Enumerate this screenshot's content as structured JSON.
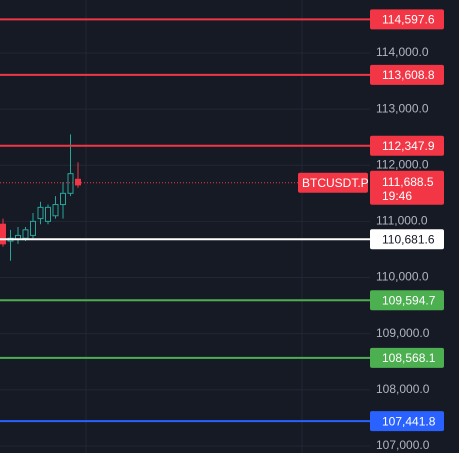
{
  "chart_data": {
    "type": "candlestick",
    "categories": [
      null,
      null,
      null,
      null,
      null,
      null,
      null,
      null,
      null,
      null,
      null
    ],
    "open": [
      110950,
      110650,
      110680,
      110700,
      110750,
      111050,
      111000,
      111100,
      111300,
      111500,
      111750
    ],
    "high": [
      111050,
      110850,
      110900,
      110900,
      111150,
      111350,
      111300,
      111450,
      111700,
      112550,
      112050
    ],
    "low": [
      110550,
      110300,
      110600,
      110650,
      110700,
      110950,
      110950,
      111050,
      111050,
      111450,
      111600
    ],
    "close": [
      110600,
      110700,
      110750,
      110850,
      111000,
      111250,
      111250,
      111300,
      111500,
      111850,
      111650
    ],
    "up_color": "#26a69a",
    "down_color": "#f23645",
    "ylim": [
      106875,
      114943
    ],
    "yticks": [
      {
        "value": 107000,
        "label": "107,000.0"
      },
      {
        "value": 108000,
        "label": "108,000.0"
      },
      {
        "value": 109000,
        "label": "109,000.0"
      },
      {
        "value": 110000,
        "label": "110,000.0"
      },
      {
        "value": 111000,
        "label": "111,000.0"
      },
      {
        "value": 112000,
        "label": "112,000.0"
      },
      {
        "value": 113000,
        "label": "113,000.0"
      },
      {
        "value": 114000,
        "label": "114,000.0"
      }
    ],
    "grid": true,
    "levels": {
      "values": [
        114597.6,
        113608.8,
        112347.9,
        110681.6,
        109594.7,
        108568.1,
        107441.8
      ],
      "value_labels": [
        "114,597.6",
        "113,608.8",
        "112,347.9",
        "110,681.6",
        "109,594.7",
        "108,568.1",
        "107,441.8"
      ],
      "colors": [
        "#f23645",
        "#f23645",
        "#f23645",
        "#ffffff",
        "#4caf50",
        "#4caf50",
        "#2962ff"
      ]
    },
    "last": {
      "symbol": "BTCUSDT.P",
      "value": 111688.5,
      "label": "111,688.5",
      "countdown": "19:46",
      "color": "#f23645"
    }
  }
}
